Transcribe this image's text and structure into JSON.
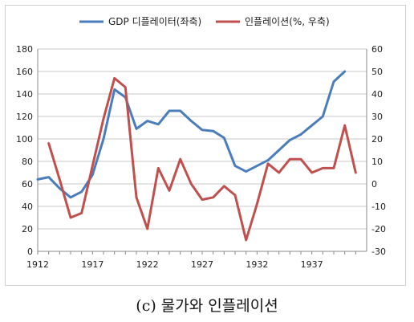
{
  "caption": "(c) 물가와 인플레이션",
  "chart_data": {
    "type": "line",
    "title": "",
    "x": [
      1912,
      1913,
      1914,
      1915,
      1916,
      1917,
      1918,
      1919,
      1920,
      1921,
      1922,
      1923,
      1924,
      1925,
      1926,
      1927,
      1928,
      1929,
      1930,
      1931,
      1932,
      1933,
      1934,
      1935,
      1936,
      1937,
      1938,
      1939,
      1940,
      1941
    ],
    "x_ticks": [
      1912,
      1917,
      1922,
      1927,
      1932,
      1937
    ],
    "left_axis": {
      "ylim": [
        0,
        180
      ],
      "ticks": [
        0,
        20,
        40,
        60,
        80,
        100,
        120,
        140,
        160,
        180
      ]
    },
    "right_axis": {
      "ylim": [
        -30,
        60
      ],
      "ticks": [
        -30,
        -20,
        -10,
        0,
        10,
        20,
        30,
        40,
        50,
        60
      ]
    },
    "legend_position": "top",
    "series": [
      {
        "name": "GDP 디플레이터(좌축)",
        "axis": "left",
        "color": "#4a7ebb",
        "values": [
          64,
          66,
          56,
          48,
          53,
          68,
          100,
          144,
          137,
          109,
          116,
          113,
          125,
          125,
          116,
          108,
          107,
          101,
          76,
          71,
          76,
          81,
          90,
          99,
          104,
          112,
          120,
          151,
          160,
          null
        ]
      },
      {
        "name": "인플레이션(%, 우축)",
        "axis": "right",
        "color": "#c0504d",
        "values": [
          null,
          18,
          2,
          -15,
          -13,
          8,
          29,
          47,
          43,
          -6,
          -20,
          7,
          -3,
          11,
          0,
          -7,
          -6,
          -1,
          -5,
          -25,
          -9,
          9,
          5,
          11,
          11,
          5,
          7,
          7,
          26,
          5
        ]
      }
    ]
  }
}
